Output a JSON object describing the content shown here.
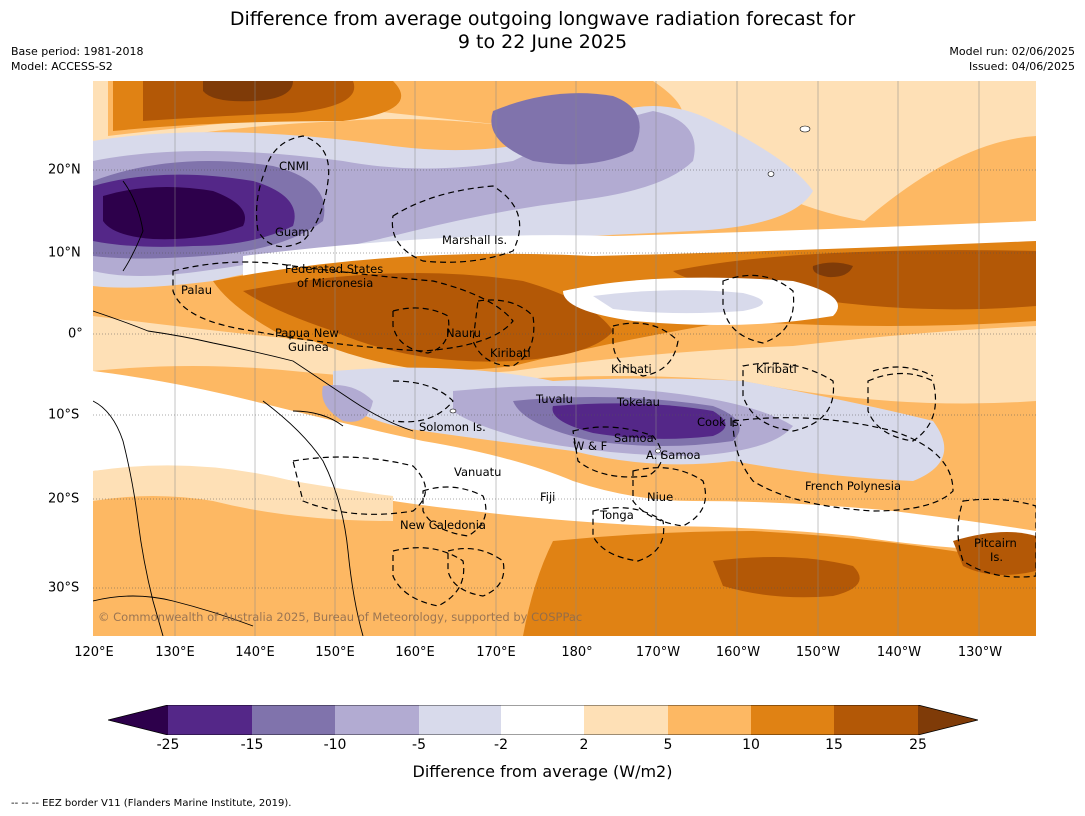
{
  "title_line1": "Difference from average outgoing longwave radiation forecast for",
  "title_line2": "9 to 22 June 2025",
  "meta_left": [
    "Base period: 1981-2018",
    "Model: ACCESS-S2"
  ],
  "meta_right": [
    "Model run: 02/06/2025",
    "Issued: 04/06/2025"
  ],
  "lon_ticks": [
    "120°E",
    "130°E",
    "140°E",
    "150°E",
    "160°E",
    "170°E",
    "180°",
    "170°W",
    "160°W",
    "150°W",
    "140°W",
    "130°W"
  ],
  "lat_ticks": [
    "20°N",
    "10°N",
    "0°",
    "10°S",
    "20°S",
    "30°S"
  ],
  "places": {
    "cnmi": "CNMI",
    "guam": "Guam",
    "marshall": "Marshall Is.",
    "fsm_1": "Federated States",
    "fsm_2": "of Micronesia",
    "palau": "Palau",
    "png_1": "Papua New",
    "png_2": "Guinea",
    "nauru": "Nauru",
    "kiribati_w": "Kiribati",
    "kiribati_c": "Kiribati",
    "kiribati_e": "Kiribati",
    "tuvalu": "Tuvalu",
    "tokelau": "Tokelau",
    "cook": "Cook Is.",
    "solomon": "Solomon Is.",
    "wf": "W & F",
    "samoa": "Samoa",
    "asamoa": "A. Samoa",
    "vanuatu": "Vanuatu",
    "fiji": "Fiji",
    "niue": "Niue",
    "tonga": "Tonga",
    "frenchpoly": "French Polynesia",
    "newcal": "New Caledonia",
    "pitcairn_1": "Pitcairn",
    "pitcairn_2": "Is."
  },
  "copyright": "© Commonwealth of Australia 2025, Bureau of Meteorology, supported by COSPPac",
  "colorbar": {
    "labels": [
      "-25",
      "-15",
      "-10",
      "-5",
      "-2",
      "2",
      "5",
      "10",
      "15",
      "25"
    ],
    "colors": {
      "lt_minus25": "#2d004b",
      "m25_m15": "#542788",
      "m15_m10": "#8073ac",
      "m10_m5": "#b2abd2",
      "m5_m2": "#d8daeb",
      "m2_p2": "#ffffff",
      "p2_p5": "#fee0b6",
      "p5_p10": "#fdb863",
      "p10_p15": "#e08214",
      "p15_p25": "#b35806",
      "gt_p25": "#7f3b08"
    },
    "title": "Difference from average (W/m2)"
  },
  "footnote": "--  --  -- EEZ border V11 (Flanders Marine Institute, 2019)."
}
